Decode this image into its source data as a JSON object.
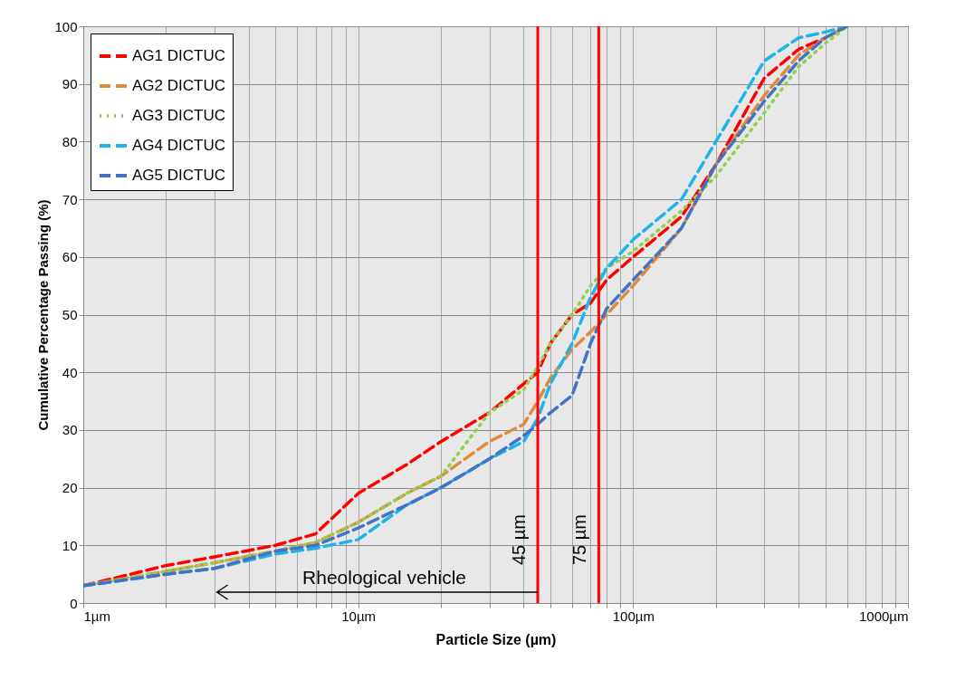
{
  "chart_data": {
    "type": "line",
    "xlabel": "Particle Size (µm)",
    "ylabel": "Cumulative Percentage Passing (%)",
    "log": "x",
    "xlim": [
      1,
      1000
    ],
    "ylim": [
      0,
      100
    ],
    "xticks": [
      {
        "value": 1,
        "label": "1µm"
      },
      {
        "value": 2,
        "label": null
      },
      {
        "value": 3,
        "label": null
      },
      {
        "value": 4,
        "label": null
      },
      {
        "value": 5,
        "label": null
      },
      {
        "value": 6,
        "label": null
      },
      {
        "value": 7,
        "label": null
      },
      {
        "value": 8,
        "label": null
      },
      {
        "value": 9,
        "label": null
      },
      {
        "value": 10,
        "label": "10µm"
      },
      {
        "value": 20,
        "label": null
      },
      {
        "value": 30,
        "label": null
      },
      {
        "value": 40,
        "label": null
      },
      {
        "value": 50,
        "label": null
      },
      {
        "value": 60,
        "label": null
      },
      {
        "value": 70,
        "label": null
      },
      {
        "value": 80,
        "label": null
      },
      {
        "value": 90,
        "label": null
      },
      {
        "value": 100,
        "label": "100µm"
      },
      {
        "value": 200,
        "label": null
      },
      {
        "value": 300,
        "label": null
      },
      {
        "value": 400,
        "label": null
      },
      {
        "value": 500,
        "label": null
      },
      {
        "value": 600,
        "label": null
      },
      {
        "value": 700,
        "label": null
      },
      {
        "value": 800,
        "label": null
      },
      {
        "value": 900,
        "label": null
      },
      {
        "value": 1000,
        "label": "1000µm"
      }
    ],
    "yticks": [
      0,
      10,
      20,
      30,
      40,
      50,
      60,
      70,
      80,
      90,
      100
    ],
    "grid": true,
    "legend": "top left",
    "marker": "none",
    "x": [
      1,
      2,
      3,
      5,
      7,
      10,
      15,
      20,
      30,
      40,
      45,
      50,
      60,
      70,
      80,
      100,
      150,
      200,
      300,
      400,
      500,
      600
    ],
    "series": [
      {
        "name": "AG1 DICTUC",
        "color": "#ff0000",
        "line_style": "dashed",
        "values": [
          3,
          6.5,
          8,
          10,
          12,
          19,
          24,
          28,
          33,
          38,
          40,
          45,
          50,
          52,
          56,
          60,
          67,
          76,
          91,
          96,
          98,
          null
        ]
      },
      {
        "name": "AG2 DICTUC",
        "color": "#e08a3c",
        "line_style": "dashed",
        "values": [
          3,
          5.5,
          7,
          9,
          10.5,
          14,
          19,
          22,
          28,
          31,
          35,
          39,
          44,
          47,
          50,
          55,
          65,
          76,
          88,
          95,
          98,
          100
        ]
      },
      {
        "name": "AG3 DICTUC",
        "color": "#92d050",
        "line_style": "dotted",
        "values": [
          3,
          5.5,
          7,
          9,
          10.5,
          14,
          19,
          22,
          33,
          37,
          41,
          45,
          50,
          55,
          58,
          61,
          68,
          74,
          85,
          93,
          97,
          100
        ]
      },
      {
        "name": "AG4 DICTUC",
        "color": "#1fb4e8",
        "line_style": "dashed",
        "values": [
          3,
          5,
          6,
          8.5,
          9.5,
          11,
          17,
          20,
          25,
          28,
          32,
          38,
          45,
          53,
          58,
          63,
          70,
          80,
          94,
          98,
          99,
          100
        ]
      },
      {
        "name": "AG5 DICTUC",
        "color": "#4472c4",
        "line_style": "dashed",
        "values": [
          3,
          5,
          6,
          9,
          10,
          13,
          17,
          20,
          25,
          29,
          31,
          33,
          36,
          45,
          51,
          56,
          65,
          76,
          87,
          94,
          98,
          100
        ]
      }
    ],
    "ref_lines": [
      {
        "axis": "x",
        "value": 45,
        "label": "45 µm",
        "color": "#ff0000"
      },
      {
        "axis": "x",
        "value": 75,
        "label": "75 µm",
        "color": "#ff0000"
      }
    ],
    "annotations": [
      "Rheological vehicle"
    ]
  }
}
